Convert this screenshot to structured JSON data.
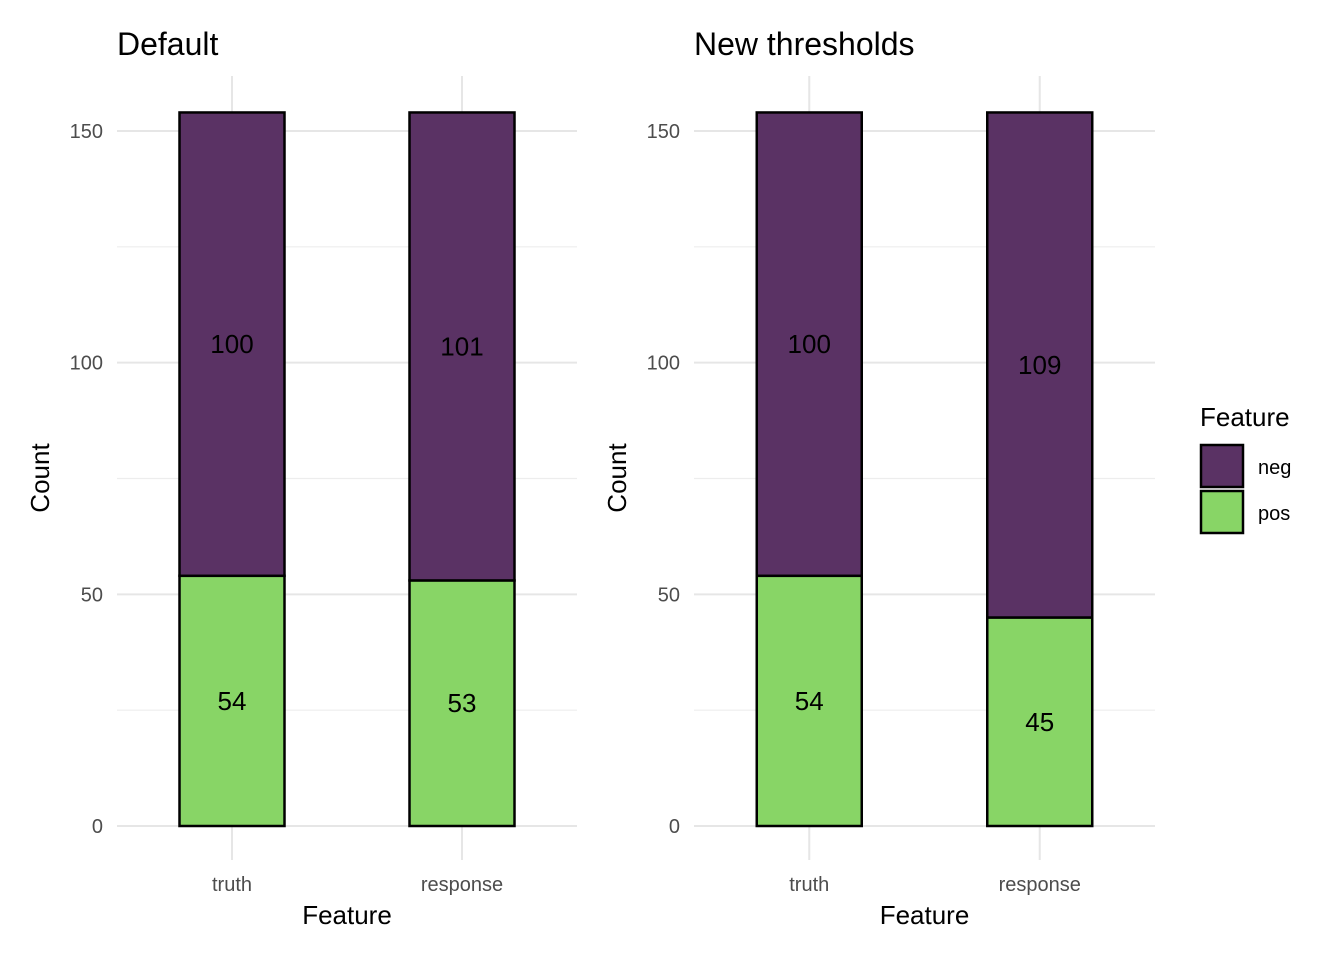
{
  "chart_data": [
    {
      "type": "bar",
      "stacked": true,
      "title": "Default",
      "xlabel": "Feature",
      "ylabel": "Count",
      "categories": [
        "truth",
        "response"
      ],
      "series": [
        {
          "name": "neg",
          "values": [
            100,
            101
          ]
        },
        {
          "name": "pos",
          "values": [
            54,
            53
          ]
        }
      ],
      "ylim": [
        0,
        154
      ],
      "yticks": [
        0,
        50,
        100,
        150
      ],
      "grid": true
    },
    {
      "type": "bar",
      "stacked": true,
      "title": "New thresholds",
      "xlabel": "Feature",
      "ylabel": "Count",
      "categories": [
        "truth",
        "response"
      ],
      "series": [
        {
          "name": "neg",
          "values": [
            100,
            109
          ]
        },
        {
          "name": "pos",
          "values": [
            54,
            45
          ]
        }
      ],
      "ylim": [
        0,
        154
      ],
      "yticks": [
        0,
        50,
        100,
        150
      ],
      "grid": true
    }
  ],
  "legend": {
    "title": "Feature",
    "placement": "right",
    "items": [
      {
        "name": "neg",
        "color": "#5a3264"
      },
      {
        "name": "pos",
        "color": "#88d566"
      }
    ]
  },
  "colors": {
    "neg": "#5a3264",
    "pos": "#88d566",
    "bar_outline": "#000000"
  }
}
